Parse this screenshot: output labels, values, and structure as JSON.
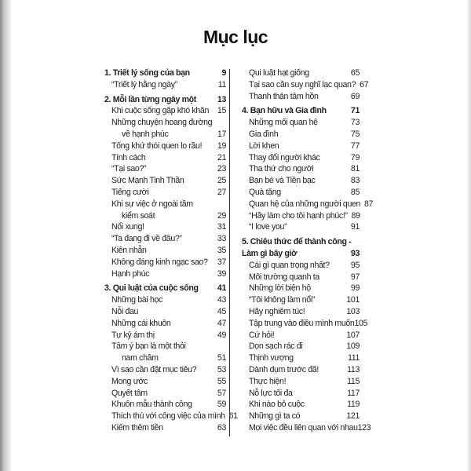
{
  "title": "Mục lục",
  "columns": [
    {
      "entries": [
        {
          "type": "section",
          "lines": [
            "1. Triết lý sống của bạn"
          ],
          "page": "9"
        },
        {
          "type": "item",
          "lines": [
            "“Triết lý hằng ngày”"
          ],
          "page": "11"
        },
        {
          "type": "section",
          "lines": [
            "2. Mỗi lần từng ngày một"
          ],
          "page": "13"
        },
        {
          "type": "item",
          "lines": [
            "Khi cuộc sống gặp khó khăn"
          ],
          "page": "15"
        },
        {
          "type": "item",
          "lines": [
            "Những chuyện hoang đường",
            "về hạnh phúc"
          ],
          "page": "17"
        },
        {
          "type": "item",
          "lines": [
            "Tống khứ thói quen lo rầu!"
          ],
          "page": "19"
        },
        {
          "type": "item",
          "lines": [
            "Tính cách"
          ],
          "page": "21"
        },
        {
          "type": "item",
          "lines": [
            "“Tại sao?”"
          ],
          "page": "23"
        },
        {
          "type": "item",
          "lines": [
            "Sức Mạnh Tinh Thần"
          ],
          "page": "25"
        },
        {
          "type": "item",
          "lines": [
            "Tiếng cười"
          ],
          "page": "27"
        },
        {
          "type": "item",
          "lines": [
            "Khi sự việc ở ngoài tầm",
            "kiểm soát"
          ],
          "page": "29"
        },
        {
          "type": "item",
          "lines": [
            "Nổi xung!"
          ],
          "page": "31"
        },
        {
          "type": "item",
          "lines": [
            "“Ta đang đi về đâu?”"
          ],
          "page": "33"
        },
        {
          "type": "item",
          "lines": [
            "Kiên nhẫn"
          ],
          "page": "35"
        },
        {
          "type": "item",
          "lines": [
            "Không đáng kinh ngạc sao?"
          ],
          "page": "37"
        },
        {
          "type": "item",
          "lines": [
            "Hạnh phúc"
          ],
          "page": "39"
        },
        {
          "type": "section",
          "lines": [
            "3. Qui luật của cuộc sống"
          ],
          "page": "41"
        },
        {
          "type": "item",
          "lines": [
            "Những bài học"
          ],
          "page": "43"
        },
        {
          "type": "item",
          "lines": [
            "Nỗi đau"
          ],
          "page": "45"
        },
        {
          "type": "item",
          "lines": [
            "Những cái khuôn"
          ],
          "page": "47"
        },
        {
          "type": "item",
          "lines": [
            "Tự kỷ ám thị"
          ],
          "page": "49"
        },
        {
          "type": "item",
          "lines": [
            "Tâm ý bạn là một thỏi",
            "nam châm"
          ],
          "page": "51"
        },
        {
          "type": "item",
          "lines": [
            "Vì sao cần đặt mục tiêu?"
          ],
          "page": "53"
        },
        {
          "type": "item",
          "lines": [
            "Mong ước"
          ],
          "page": "55"
        },
        {
          "type": "item",
          "lines": [
            "Quyết tâm"
          ],
          "page": "57"
        },
        {
          "type": "item",
          "lines": [
            "Khuôn mẫu thành công"
          ],
          "page": "59"
        },
        {
          "type": "item",
          "lines": [
            "Thích thú với công việc của mình"
          ],
          "page": "61"
        },
        {
          "type": "item",
          "lines": [
            "Kiếm thêm tiền"
          ],
          "page": "63"
        }
      ]
    },
    {
      "entries": [
        {
          "type": "item",
          "lines": [
            "Qui luật hạt giống"
          ],
          "page": "65"
        },
        {
          "type": "item",
          "lines": [
            "Tại sao cần suy nghĩ lạc quan?"
          ],
          "page": "67"
        },
        {
          "type": "item",
          "lines": [
            "Thanh thản tâm hồn"
          ],
          "page": "69"
        },
        {
          "type": "section",
          "lines": [
            "4. Bạn hữu và Gia đình"
          ],
          "page": "71"
        },
        {
          "type": "item",
          "lines": [
            "Những mối quan hệ"
          ],
          "page": "73"
        },
        {
          "type": "item",
          "lines": [
            "Gia đình"
          ],
          "page": "75"
        },
        {
          "type": "item",
          "lines": [
            "Lời khen"
          ],
          "page": "77"
        },
        {
          "type": "item",
          "lines": [
            "Thay đổi người khác"
          ],
          "page": "79"
        },
        {
          "type": "item",
          "lines": [
            "Tha thứ cho người"
          ],
          "page": "81"
        },
        {
          "type": "item",
          "lines": [
            "Bạn bè và Tiền bạc"
          ],
          "page": "83"
        },
        {
          "type": "item",
          "lines": [
            "Quà tặng"
          ],
          "page": "85"
        },
        {
          "type": "item",
          "lines": [
            "Quan hệ của những người quen"
          ],
          "page": "87"
        },
        {
          "type": "item",
          "lines": [
            "“Hãy làm cho tôi hạnh phúc!”"
          ],
          "page": "89"
        },
        {
          "type": "item",
          "lines": [
            "“I love you”"
          ],
          "page": "91"
        },
        {
          "type": "section",
          "lines": [
            "5. Chiêu thức để thành công -",
            "Làm gì bây giờ"
          ],
          "page": "93"
        },
        {
          "type": "item",
          "lines": [
            "Cái gì quan trọng nhất?"
          ],
          "page": "95"
        },
        {
          "type": "item",
          "lines": [
            "Môi trường quanh ta"
          ],
          "page": "97"
        },
        {
          "type": "item",
          "lines": [
            "Những lời biện hộ"
          ],
          "page": "99"
        },
        {
          "type": "item",
          "lines": [
            "“Tôi không làm nổi”"
          ],
          "page": "101"
        },
        {
          "type": "item",
          "lines": [
            "Hãy nghiêm túc!"
          ],
          "page": "103"
        },
        {
          "type": "item",
          "lines": [
            "Tập trung vào điều mình muốn"
          ],
          "page": "105"
        },
        {
          "type": "item",
          "lines": [
            "Cứ hỏi!"
          ],
          "page": "107"
        },
        {
          "type": "item",
          "lines": [
            "Dọn sạch rác đi"
          ],
          "page": "109"
        },
        {
          "type": "item",
          "lines": [
            "Thịnh vượng"
          ],
          "page": "111"
        },
        {
          "type": "item",
          "lines": [
            "Dành dụm trước đã!"
          ],
          "page": "113"
        },
        {
          "type": "item",
          "lines": [
            "Thực hiện!"
          ],
          "page": "115"
        },
        {
          "type": "item",
          "lines": [
            "Nỗ lực tối đa"
          ],
          "page": "117"
        },
        {
          "type": "item",
          "lines": [
            "Khi nào bỏ cuộc"
          ],
          "page": "119"
        },
        {
          "type": "item",
          "lines": [
            "Những gì ta có"
          ],
          "page": "121"
        },
        {
          "type": "item",
          "lines": [
            "Mọi việc đều liên quan với nhau"
          ],
          "page": "123"
        }
      ]
    }
  ]
}
